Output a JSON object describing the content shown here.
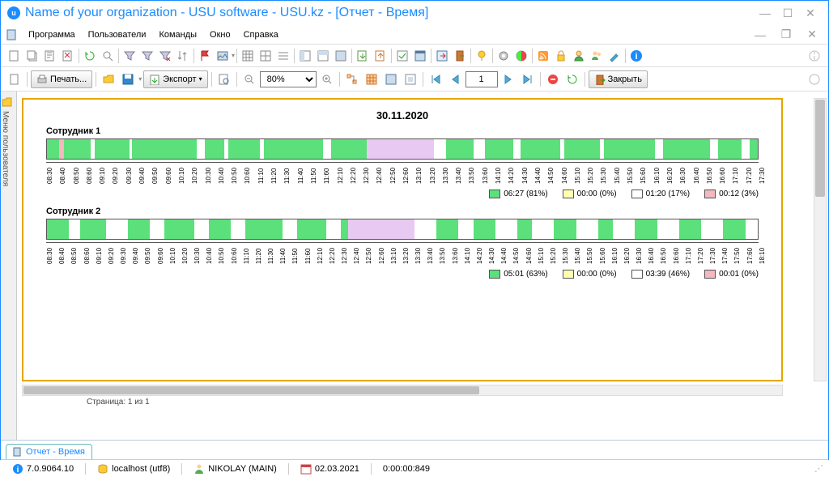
{
  "window": {
    "title": "Name of your organization - USU software - USU.kz - [Отчет - Время]"
  },
  "menu": {
    "items": [
      "Программа",
      "Пользователи",
      "Команды",
      "Окно",
      "Справка"
    ]
  },
  "toolbar2": {
    "print": "Печать...",
    "export": "Экспорт",
    "zoom": "80%",
    "page": "1",
    "close": "Закрыть"
  },
  "sidetab": {
    "label": "Меню пользователя"
  },
  "report": {
    "date": "30.11.2020",
    "employees": [
      {
        "name": "Сотрудник 1",
        "start": 8.5,
        "end": 17.5,
        "segments": [
          {
            "s": 8.5,
            "e": 8.65,
            "c": "#5be07b"
          },
          {
            "s": 8.65,
            "e": 8.72,
            "c": "#f5b7c0"
          },
          {
            "s": 8.72,
            "e": 9.05,
            "c": "#5be07b"
          },
          {
            "s": 9.05,
            "e": 9.1,
            "c": "#ffffff"
          },
          {
            "s": 9.1,
            "e": 9.55,
            "c": "#5be07b"
          },
          {
            "s": 9.55,
            "e": 9.58,
            "c": "#ffffff"
          },
          {
            "s": 9.58,
            "e": 10.4,
            "c": "#5be07b"
          },
          {
            "s": 10.4,
            "e": 10.5,
            "c": "#ffffff"
          },
          {
            "s": 10.5,
            "e": 10.75,
            "c": "#5be07b"
          },
          {
            "s": 10.75,
            "e": 10.8,
            "c": "#ffffff"
          },
          {
            "s": 10.8,
            "e": 11.2,
            "c": "#5be07b"
          },
          {
            "s": 11.2,
            "e": 11.25,
            "c": "#ffffff"
          },
          {
            "s": 11.25,
            "e": 12.0,
            "c": "#5be07b"
          },
          {
            "s": 12.0,
            "e": 12.1,
            "c": "#ffffff"
          },
          {
            "s": 12.1,
            "e": 12.55,
            "c": "#5be07b"
          },
          {
            "s": 12.55,
            "e": 13.0,
            "c": "#e8c9f2"
          },
          {
            "s": 13.0,
            "e": 13.4,
            "c": "#e8c9f2"
          },
          {
            "s": 13.4,
            "e": 13.55,
            "c": "#ffffff"
          },
          {
            "s": 13.55,
            "e": 13.9,
            "c": "#5be07b"
          },
          {
            "s": 13.9,
            "e": 14.05,
            "c": "#ffffff"
          },
          {
            "s": 14.05,
            "e": 14.4,
            "c": "#5be07b"
          },
          {
            "s": 14.4,
            "e": 14.5,
            "c": "#ffffff"
          },
          {
            "s": 14.5,
            "e": 15.0,
            "c": "#5be07b"
          },
          {
            "s": 15.0,
            "e": 15.05,
            "c": "#ffffff"
          },
          {
            "s": 15.05,
            "e": 15.5,
            "c": "#5be07b"
          },
          {
            "s": 15.5,
            "e": 15.55,
            "c": "#ffffff"
          },
          {
            "s": 15.55,
            "e": 16.2,
            "c": "#5be07b"
          },
          {
            "s": 16.2,
            "e": 16.3,
            "c": "#ffffff"
          },
          {
            "s": 16.3,
            "e": 16.9,
            "c": "#5be07b"
          },
          {
            "s": 16.9,
            "e": 17.0,
            "c": "#ffffff"
          },
          {
            "s": 17.0,
            "e": 17.3,
            "c": "#5be07b"
          },
          {
            "s": 17.3,
            "e": 17.4,
            "c": "#ffffff"
          },
          {
            "s": 17.4,
            "e": 17.5,
            "c": "#5be07b"
          }
        ],
        "legend": [
          {
            "c": "#5be07b",
            "t": "06:27 (81%)"
          },
          {
            "c": "#ffffb0",
            "t": "00:00 (0%)"
          },
          {
            "c": "#ffffff",
            "t": "01:20 (17%)"
          },
          {
            "c": "#f5b7c0",
            "t": "00:12 (3%)"
          }
        ]
      },
      {
        "name": "Сотрудник 2",
        "start": 8.5,
        "end": 18.17,
        "segments": [
          {
            "s": 8.5,
            "e": 8.8,
            "c": "#5be07b"
          },
          {
            "s": 8.8,
            "e": 8.95,
            "c": "#ffffff"
          },
          {
            "s": 8.95,
            "e": 9.3,
            "c": "#5be07b"
          },
          {
            "s": 9.3,
            "e": 9.6,
            "c": "#ffffff"
          },
          {
            "s": 9.6,
            "e": 9.9,
            "c": "#5be07b"
          },
          {
            "s": 9.9,
            "e": 10.1,
            "c": "#ffffff"
          },
          {
            "s": 10.1,
            "e": 10.5,
            "c": "#5be07b"
          },
          {
            "s": 10.5,
            "e": 10.7,
            "c": "#ffffff"
          },
          {
            "s": 10.7,
            "e": 11.0,
            "c": "#5be07b"
          },
          {
            "s": 11.0,
            "e": 11.2,
            "c": "#ffffff"
          },
          {
            "s": 11.2,
            "e": 11.7,
            "c": "#5be07b"
          },
          {
            "s": 11.7,
            "e": 11.9,
            "c": "#ffffff"
          },
          {
            "s": 11.9,
            "e": 12.3,
            "c": "#5be07b"
          },
          {
            "s": 12.3,
            "e": 12.5,
            "c": "#ffffff"
          },
          {
            "s": 12.5,
            "e": 12.6,
            "c": "#5be07b"
          },
          {
            "s": 12.6,
            "e": 13.5,
            "c": "#e8c9f2"
          },
          {
            "s": 13.5,
            "e": 13.8,
            "c": "#ffffff"
          },
          {
            "s": 13.8,
            "e": 14.1,
            "c": "#5be07b"
          },
          {
            "s": 14.1,
            "e": 14.3,
            "c": "#ffffff"
          },
          {
            "s": 14.3,
            "e": 14.6,
            "c": "#5be07b"
          },
          {
            "s": 14.6,
            "e": 14.9,
            "c": "#ffffff"
          },
          {
            "s": 14.9,
            "e": 15.1,
            "c": "#5be07b"
          },
          {
            "s": 15.1,
            "e": 15.4,
            "c": "#ffffff"
          },
          {
            "s": 15.4,
            "e": 15.7,
            "c": "#5be07b"
          },
          {
            "s": 15.7,
            "e": 16.0,
            "c": "#ffffff"
          },
          {
            "s": 16.0,
            "e": 16.2,
            "c": "#5be07b"
          },
          {
            "s": 16.2,
            "e": 16.5,
            "c": "#ffffff"
          },
          {
            "s": 16.5,
            "e": 16.8,
            "c": "#5be07b"
          },
          {
            "s": 16.8,
            "e": 17.1,
            "c": "#ffffff"
          },
          {
            "s": 17.1,
            "e": 17.4,
            "c": "#5be07b"
          },
          {
            "s": 17.4,
            "e": 17.7,
            "c": "#ffffff"
          },
          {
            "s": 17.7,
            "e": 18.0,
            "c": "#5be07b"
          },
          {
            "s": 18.0,
            "e": 18.17,
            "c": "#ffffff"
          }
        ],
        "legend": [
          {
            "c": "#5be07b",
            "t": "05:01 (63%)"
          },
          {
            "c": "#ffffb0",
            "t": "00:00 (0%)"
          },
          {
            "c": "#ffffff",
            "t": "03:39 (46%)"
          },
          {
            "c": "#f5b7c0",
            "t": "00:01 (0%)"
          }
        ]
      }
    ]
  },
  "pager": {
    "text": "Страница: 1 из 1"
  },
  "tab": {
    "label": "Отчет - Время"
  },
  "status": {
    "version": "7.0.9064.10",
    "host": "localhost (utf8)",
    "user": "NIKOLAY (MAIN)",
    "date": "02.03.2021",
    "timer": "0:00:00:849"
  },
  "colors": {
    "seg_green": "#5be07b",
    "seg_pink": "#f5b7c0",
    "seg_purple": "#e8c9f2",
    "seg_yellow": "#ffffb0"
  }
}
